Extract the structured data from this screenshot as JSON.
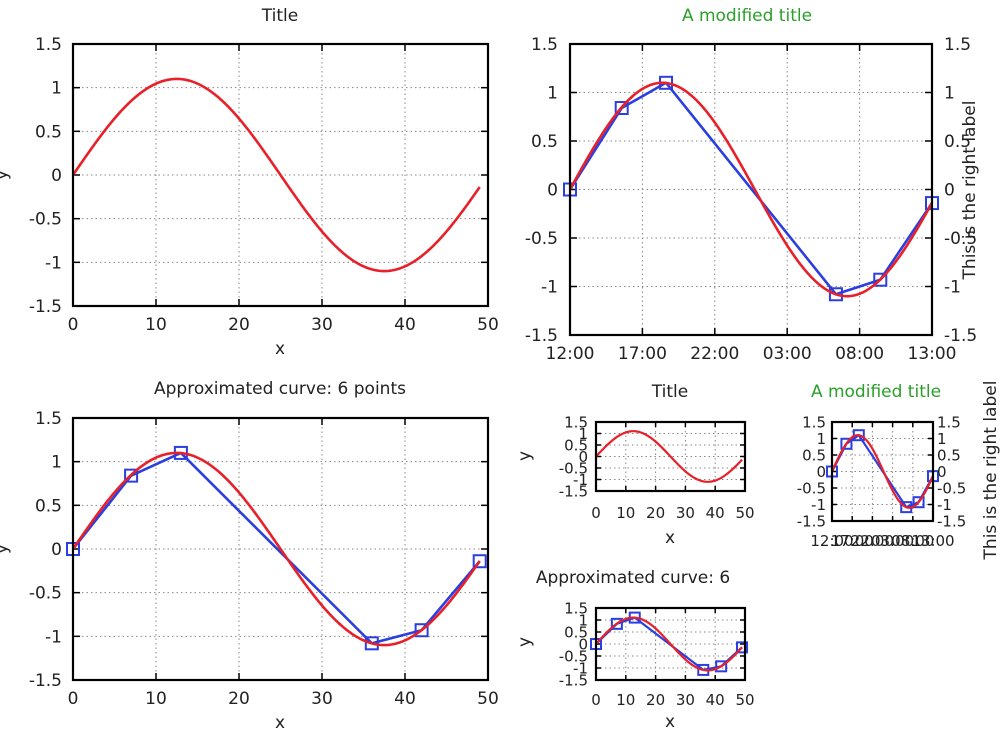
{
  "chart_data": [
    {
      "type": "line",
      "title": "Title",
      "title_color": "#222222",
      "xlabel": "x",
      "ylabel": "y",
      "xlim": [
        0,
        50
      ],
      "ylim": [
        -1.5,
        1.5
      ],
      "xticks": [
        "0",
        "10",
        "20",
        "30",
        "40",
        "50"
      ],
      "yticks": [
        "-1.5",
        "-1",
        "-0.5",
        "0",
        "0.5",
        "1",
        "1.5"
      ],
      "grid": true,
      "series": [
        {
          "color": "#e8202a",
          "function": "1.1*sin(2*pi*x/50)",
          "x_range": [
            0,
            49
          ],
          "marker": "none"
        }
      ]
    },
    {
      "type": "line",
      "title": "A modified title",
      "title_color": "#2aa02a",
      "xlabel": "",
      "ylabel": "",
      "right_ylabel": "This is the right label",
      "xlim": [
        0,
        49
      ],
      "ylim": [
        -1.5,
        1.5
      ],
      "xticks": [
        "12:00",
        "17:00",
        "22:00",
        "03:00",
        "08:00",
        "13:00"
      ],
      "yticks": [
        "-1.5",
        "-1",
        "-0.5",
        "0",
        "0.5",
        "1",
        "1.5"
      ],
      "grid": true,
      "series": [
        {
          "color": "#2b3fe0",
          "marker": "square",
          "x": [
            0,
            7,
            13,
            36,
            42,
            49
          ],
          "y": [
            0,
            0.84,
            1.1,
            -1.08,
            -0.93,
            -0.14
          ]
        },
        {
          "color": "#e8202a",
          "function": "1.1*sin(2*pi*x/50)",
          "x_range": [
            0,
            49
          ],
          "marker": "none"
        }
      ]
    },
    {
      "type": "line",
      "title": "Approximated curve: 6 points",
      "title_color": "#222222",
      "xlabel": "x",
      "ylabel": "y",
      "xlim": [
        0,
        50
      ],
      "ylim": [
        -1.5,
        1.5
      ],
      "xticks": [
        "0",
        "10",
        "20",
        "30",
        "40",
        "50"
      ],
      "yticks": [
        "-1.5",
        "-1",
        "-0.5",
        "0",
        "0.5",
        "1",
        "1.5"
      ],
      "grid": true,
      "series": [
        {
          "color": "#2b3fe0",
          "marker": "square",
          "x": [
            0,
            7,
            13,
            36,
            42,
            49
          ],
          "y": [
            0,
            0.84,
            1.1,
            -1.08,
            -0.93,
            -0.14
          ]
        },
        {
          "color": "#e8202a",
          "function": "1.1*sin(2*pi*x/50)",
          "x_range": [
            0,
            49
          ],
          "marker": "none"
        }
      ]
    },
    {
      "type": "line",
      "title": "Title",
      "title_color": "#222222",
      "xlabel": "x",
      "ylabel": "y",
      "xlim": [
        0,
        50
      ],
      "ylim": [
        -1.5,
        1.5
      ],
      "xticks": [
        "0",
        "10",
        "20",
        "30",
        "40",
        "50"
      ],
      "yticks": [
        "-1.5",
        "-1",
        "-0.5",
        "0",
        "0.5",
        "1",
        "1.5"
      ],
      "grid": true,
      "series": [
        {
          "color": "#e8202a",
          "function": "1.1*sin(2*pi*x/50)",
          "x_range": [
            0,
            49
          ],
          "marker": "none"
        }
      ]
    },
    {
      "type": "line",
      "title": "A modified title",
      "title_color": "#2aa02a",
      "xlabel": "",
      "ylabel": "",
      "right_ylabel": "This is the right label",
      "xlim": [
        0,
        49
      ],
      "ylim": [
        -1.5,
        1.5
      ],
      "xticks": [
        "12:00",
        "17:00",
        "22:00",
        "03:00",
        "08:00",
        "13:00"
      ],
      "yticks": [
        "-1.5",
        "-1",
        "-0.5",
        "0",
        "0.5",
        "1",
        "1.5"
      ],
      "grid": true,
      "series": [
        {
          "color": "#2b3fe0",
          "marker": "square",
          "x": [
            0,
            7,
            13,
            36,
            42,
            49
          ],
          "y": [
            0,
            0.84,
            1.1,
            -1.08,
            -0.93,
            -0.14
          ]
        },
        {
          "color": "#e8202a",
          "function": "1.1*sin(2*pi*x/50)",
          "x_range": [
            0,
            49
          ],
          "marker": "none"
        }
      ]
    },
    {
      "type": "line",
      "title": "Approximated curve: 6",
      "title_color": "#222222",
      "xlabel": "x",
      "ylabel": "y",
      "xlim": [
        0,
        50
      ],
      "ylim": [
        -1.5,
        1.5
      ],
      "xticks": [
        "0",
        "10",
        "20",
        "30",
        "40",
        "50"
      ],
      "yticks": [
        "-1.5",
        "-1",
        "-0.5",
        "0",
        "0.5",
        "1",
        "1.5"
      ],
      "grid": true,
      "series": [
        {
          "color": "#2b3fe0",
          "marker": "square",
          "x": [
            0,
            7,
            13,
            36,
            42,
            49
          ],
          "y": [
            0,
            0.84,
            1.1,
            -1.08,
            -0.93,
            -0.14
          ]
        },
        {
          "color": "#e8202a",
          "function": "1.1*sin(2*pi*x/50)",
          "x_range": [
            0,
            49
          ],
          "marker": "none"
        }
      ]
    }
  ]
}
